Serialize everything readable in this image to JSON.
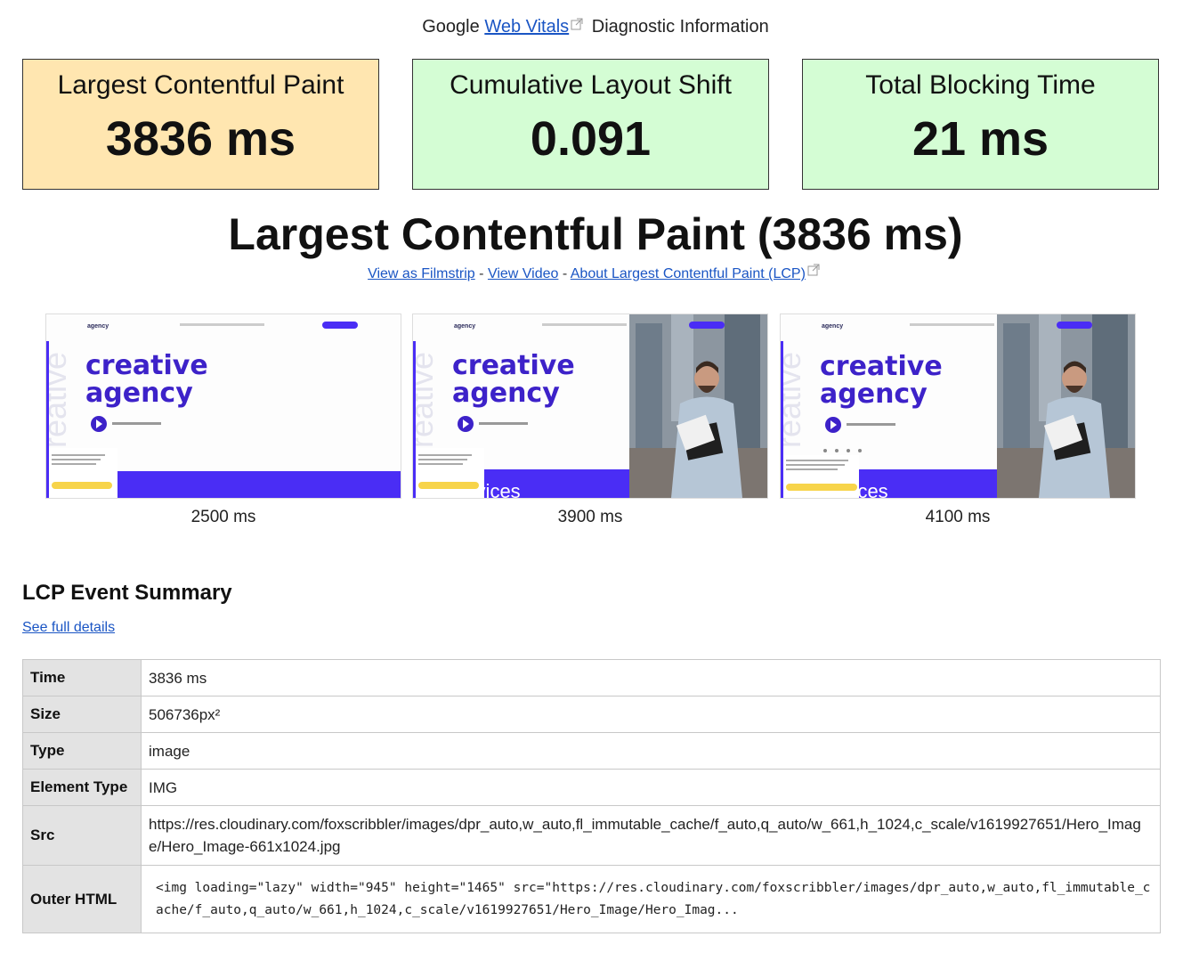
{
  "header": {
    "prefix": "Google",
    "link": "Web Vitals",
    "suffix": "Diagnostic Information"
  },
  "metrics": {
    "lcp": {
      "label": "Largest Contentful Paint",
      "value": "3836 ms",
      "color": "#ffe6b0"
    },
    "cls": {
      "label": "Cumulative Layout Shift",
      "value": "0.091",
      "color": "#d4fdd4"
    },
    "tbt": {
      "label": "Total Blocking Time",
      "value": "21 ms",
      "color": "#d4fdd4"
    }
  },
  "lcp_section": {
    "title": "Largest Contentful Paint (3836 ms)",
    "links": {
      "filmstrip": "View as Filmstrip",
      "sep1": "-",
      "video": "View Video",
      "sep2": "-",
      "about": "About Largest Contentful Paint (LCP)"
    }
  },
  "filmstrip": {
    "frames": [
      {
        "time": "2500 ms",
        "logo": "agency",
        "headline1": "creative",
        "headline2": "agency",
        "vertical": "reative",
        "services": ""
      },
      {
        "time": "3900 ms",
        "logo": "agency",
        "headline1": "creative",
        "headline2": "agency",
        "vertical": "reative",
        "services": "services"
      },
      {
        "time": "4100 ms",
        "logo": "agency",
        "headline1": "creative",
        "headline2": "agency",
        "vertical": "reative",
        "services": "services"
      }
    ],
    "accent": "#4a2df5",
    "button_color": "#f7d44a"
  },
  "summary": {
    "title": "LCP Event Summary",
    "see_full": "See full details",
    "rows": {
      "time": {
        "key": "Time",
        "value": "3836 ms"
      },
      "size": {
        "key": "Size",
        "value": "506736px²"
      },
      "type": {
        "key": "Type",
        "value": "image"
      },
      "element_type": {
        "key": "Element Type",
        "value": "IMG"
      },
      "src": {
        "key": "Src",
        "value": "https://res.cloudinary.com/foxscribbler/images/dpr_auto,w_auto,fl_immutable_cache/f_auto,q_auto/w_661,h_1024,c_scale/v1619927651/Hero_Image/Hero_Image-661x1024.jpg"
      },
      "outer_html": {
        "key": "Outer HTML",
        "value": "<img loading=\"lazy\" width=\"945\" height=\"1465\" src=\"https://res.cloudinary.com/foxscribbler/images/dpr_auto,w_auto,fl_immutable_cache/f_auto,q_auto/w_661,h_1024,c_scale/v1619927651/Hero_Image/Hero_Imag..."
      }
    }
  }
}
